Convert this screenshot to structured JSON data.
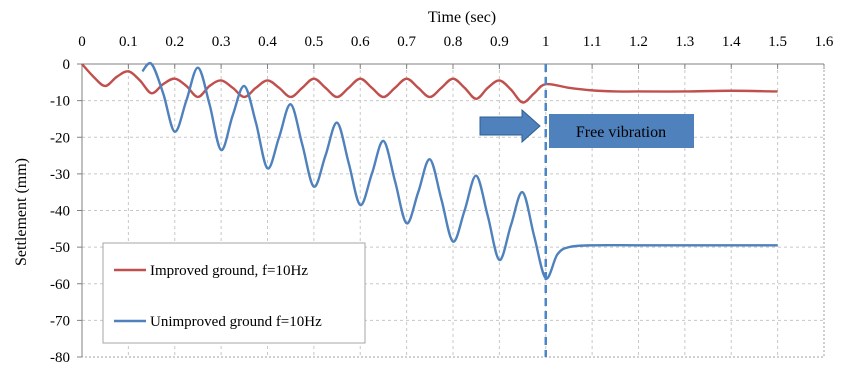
{
  "chart_data": {
    "type": "line",
    "xlabel": "Time (sec)",
    "ylabel": "Settlement (mm)",
    "xlim": [
      0,
      1.6
    ],
    "ylim": [
      -80,
      0
    ],
    "x_ticks": [
      "0",
      "0.1",
      "0.2",
      "0.3",
      "0.4",
      "0.5",
      "0.6",
      "0.7",
      "0.8",
      "0.9",
      "1",
      "1.1",
      "1.2",
      "1.3",
      "1.4",
      "1.5",
      "1.6"
    ],
    "y_ticks": [
      "0",
      "-10",
      "-20",
      "-30",
      "-40",
      "-50",
      "-60",
      "-70",
      "-80"
    ],
    "x_axis_position": "top",
    "grid": true,
    "legend_position": "bottom-left",
    "series": [
      {
        "name": "Improved ground, f=10Hz",
        "color": "#c0504d",
        "x": [
          0,
          0.025,
          0.05,
          0.075,
          0.1,
          0.125,
          0.15,
          0.175,
          0.2,
          0.225,
          0.25,
          0.275,
          0.3,
          0.325,
          0.35,
          0.375,
          0.4,
          0.425,
          0.45,
          0.475,
          0.5,
          0.525,
          0.55,
          0.575,
          0.6,
          0.625,
          0.65,
          0.675,
          0.7,
          0.725,
          0.75,
          0.775,
          0.8,
          0.825,
          0.85,
          0.875,
          0.9,
          0.925,
          0.95,
          0.975,
          1.0,
          1.05,
          1.1,
          1.15,
          1.2,
          1.3,
          1.4,
          1.5
        ],
        "values": [
          0,
          -3.5,
          -6,
          -3.5,
          -2,
          -4.5,
          -8,
          -5.5,
          -4,
          -6,
          -9,
          -6,
          -4.5,
          -6.5,
          -9,
          -6.5,
          -4.5,
          -6.5,
          -9,
          -6.5,
          -4,
          -6.5,
          -9,
          -6.5,
          -4,
          -6.5,
          -9,
          -6.5,
          -4,
          -6.5,
          -9,
          -6.5,
          -4,
          -6.5,
          -9.5,
          -6.5,
          -4.5,
          -7,
          -10.5,
          -8,
          -5.5,
          -6.5,
          -7.2,
          -7.5,
          -7.5,
          -7.5,
          -7.3,
          -7.5
        ]
      },
      {
        "name": "Unimproved ground f=10Hz",
        "color": "#4f81bd",
        "x": [
          0.13,
          0.15,
          0.175,
          0.2,
          0.225,
          0.25,
          0.275,
          0.3,
          0.325,
          0.35,
          0.375,
          0.4,
          0.425,
          0.45,
          0.475,
          0.5,
          0.525,
          0.55,
          0.575,
          0.6,
          0.625,
          0.65,
          0.675,
          0.7,
          0.725,
          0.75,
          0.775,
          0.8,
          0.825,
          0.85,
          0.875,
          0.9,
          0.925,
          0.95,
          0.975,
          1.0,
          1.025,
          1.05,
          1.1,
          1.2,
          1.3,
          1.4,
          1.5
        ],
        "values": [
          -2,
          0,
          -8,
          -18.5,
          -10,
          -1,
          -11,
          -23.5,
          -14,
          -6,
          -16,
          -28.5,
          -20,
          -11,
          -22,
          -33.5,
          -25,
          -16,
          -27,
          -38.5,
          -30,
          -21,
          -32,
          -43.5,
          -35,
          -26,
          -37,
          -48.5,
          -40,
          -30.5,
          -41.5,
          -53.5,
          -44,
          -35,
          -47,
          -58.5,
          -52,
          -50,
          -49.5,
          -49.5,
          -49.5,
          -49.5,
          -49.5
        ]
      }
    ],
    "vertical_marker": {
      "x": 1.0,
      "color": "#4a86c8",
      "style": "dashed"
    },
    "annotation": {
      "text": "Free vibration",
      "arrow_color": "#4f81bd",
      "box_color": "#4f81bd"
    }
  }
}
